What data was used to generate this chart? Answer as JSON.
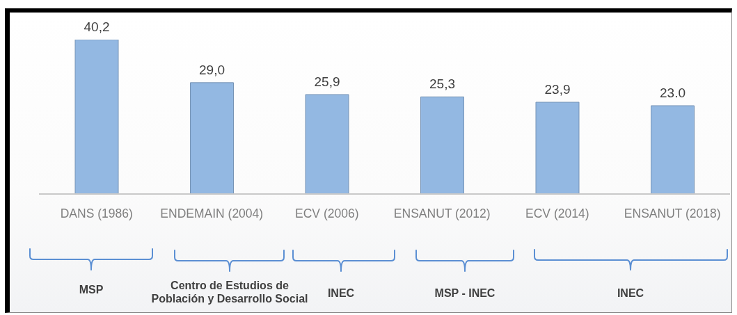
{
  "chart_data": {
    "type": "bar",
    "categories": [
      "DANS (1986)",
      "ENDEMAIN (2004)",
      "ECV (2006)",
      "ENSANUT (2012)",
      "ECV (2014)",
      "ENSANUT (2018)"
    ],
    "values": [
      40.2,
      29.0,
      25.9,
      25.3,
      23.9,
      23.0
    ],
    "value_labels": [
      "40,2",
      "29,0",
      "25,9",
      "25,3",
      "23,9",
      "23.0"
    ],
    "color": "#93b8e2",
    "annotations": [
      "MSP",
      "Centro de Estudios de Población y Desarrollo Social",
      "INEC",
      "MSP - INEC",
      "INEC"
    ]
  }
}
